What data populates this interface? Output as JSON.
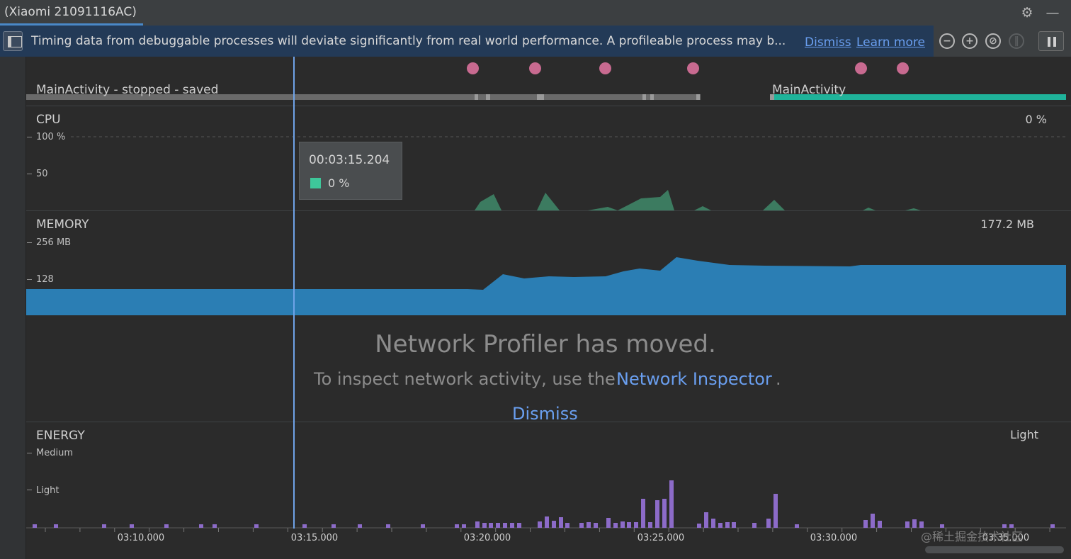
{
  "window": {
    "title": "(Xiaomi 21091116AC)"
  },
  "toolbar": {
    "settings_icon": "gear-icon",
    "minimize_icon": "minus-icon"
  },
  "banner": {
    "message": "Timing data from debuggable processes will deviate significantly from real world performance. A profileable process may b...",
    "dismiss_label": "Dismiss",
    "learn_more_label": "Learn more"
  },
  "controls": {
    "zoom_out_icon": "zoom-out-icon",
    "zoom_in_icon": "zoom-in-icon",
    "reset_zoom_icon": "reset-zoom-icon",
    "attach_live_icon": "live-icon",
    "pause_icon": "pause-icon"
  },
  "activities": {
    "first_label": "MainActivity - stopped - saved",
    "second_label": "MainActivity"
  },
  "cpu": {
    "label": "CPU",
    "current_value": "0 %",
    "axis": [
      "100 %",
      "50"
    ],
    "color": "#3f8a6a"
  },
  "memory": {
    "label": "MEMORY",
    "current_value": "177.2 MB",
    "axis": [
      "256 MB",
      "128"
    ],
    "color": "#2b7eb4"
  },
  "tooltip": {
    "time": "00:03:15.204",
    "value": "0 %",
    "swatch_color": "#3ec79a"
  },
  "network": {
    "title": "Network Profiler has moved.",
    "body_prefix": "To inspect network activity, use the",
    "link": "Network Inspector",
    "period": ".",
    "dismiss_label": "Dismiss"
  },
  "energy": {
    "label": "ENERGY",
    "current_value": "Light",
    "axis": [
      "Medium",
      "Light"
    ],
    "bar_color": "#8c6bc8"
  },
  "timeline": {
    "ticks": [
      "03:10.000",
      "03:15.000",
      "03:20.000",
      "03:25.000",
      "03:30.000",
      "03:35.000"
    ]
  },
  "watermark": "@稀土掘金技术社区"
}
